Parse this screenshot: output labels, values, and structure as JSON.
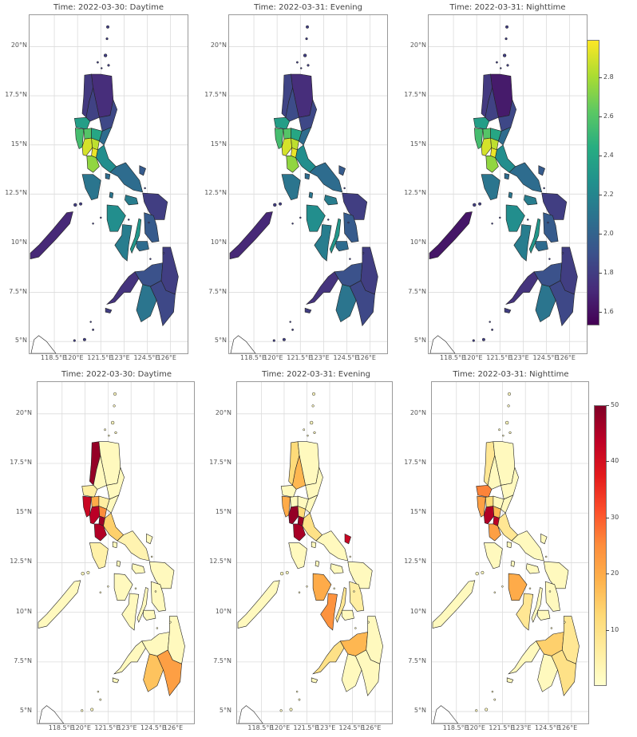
{
  "rows": [
    {
      "colorbar": {
        "type": "viridis",
        "min": 1.53,
        "max": 2.99,
        "ticks": [
          "1.6",
          "1.8",
          "2.0",
          "2.2",
          "2.4",
          "2.6",
          "2.8"
        ],
        "tick_values": [
          1.6,
          1.8,
          2.0,
          2.2,
          2.4,
          2.6,
          2.8
        ]
      },
      "panels": [
        {
          "title": "Time: 2022-03-30: Daytime"
        },
        {
          "title": "Time: 2022-03-31: Evening"
        },
        {
          "title": "Time: 2022-03-31: Nighttime"
        }
      ]
    },
    {
      "colorbar": {
        "type": "ylorrd",
        "min": 0,
        "max": 50,
        "ticks": [
          "10",
          "20",
          "30",
          "40",
          "50"
        ],
        "tick_values": [
          10,
          20,
          30,
          40,
          50
        ]
      },
      "panels": [
        {
          "title": "Time: 2022-03-30: Daytime"
        },
        {
          "title": "Time: 2022-03-31: Evening"
        },
        {
          "title": "Time: 2022-03-31: Nighttime"
        }
      ]
    }
  ],
  "axes": {
    "lat_ticks": [
      "20°N",
      "17.5°N",
      "15°N",
      "12.5°N",
      "10°N",
      "7.5°N",
      "5°N"
    ],
    "lat_values": [
      20,
      17.5,
      15,
      12.5,
      10,
      7.5,
      5
    ],
    "lon_ticks": [
      "118.5°E",
      "120°E",
      "121.5°E",
      "123°E",
      "124.5°E",
      "126°E"
    ],
    "lon_values": [
      118.5,
      120,
      121.5,
      123,
      124.5,
      126
    ],
    "lat_range": [
      4.4,
      21.6
    ],
    "lon_range": [
      116.9,
      127.1
    ]
  },
  "colors": {
    "grid": "#dcdcdc",
    "border": "#222222",
    "frame": "#999999"
  }
}
